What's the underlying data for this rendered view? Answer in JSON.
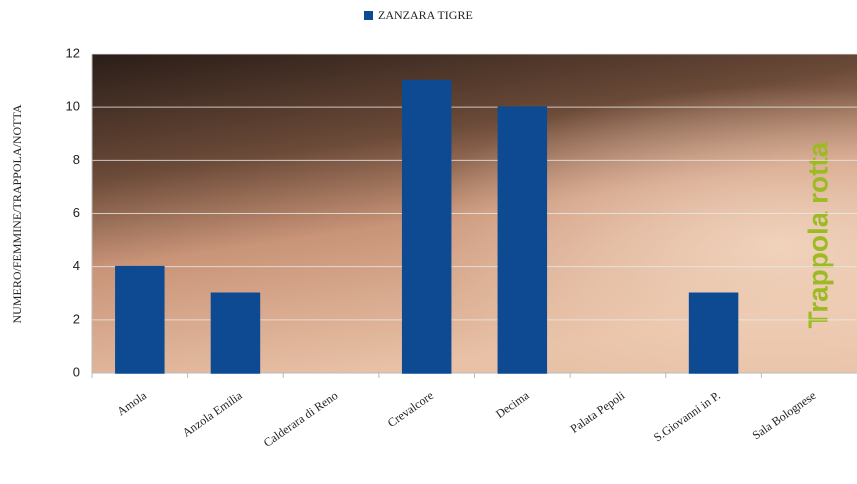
{
  "chart_data": {
    "type": "bar",
    "legend": "ZANZARA TIGRE",
    "y_axis_label": "NUMERO/FEMMINE/TRAPPOLA/NOTTA",
    "annotation": "Trappola rotta",
    "categories": [
      "Amola",
      "Anzola Emilia",
      "Calderara di Reno",
      "Crevalcore",
      "Decima",
      "Palata Pepoli",
      "S.Giovanni in P.",
      "Sala Bolognese"
    ],
    "values": [
      4,
      3,
      0,
      11,
      10,
      0,
      3,
      null
    ],
    "color": "#0e4a92",
    "ylim": [
      0,
      12
    ],
    "yticks": [
      0,
      2,
      4,
      6,
      8,
      10,
      12
    ],
    "grid": true
  }
}
